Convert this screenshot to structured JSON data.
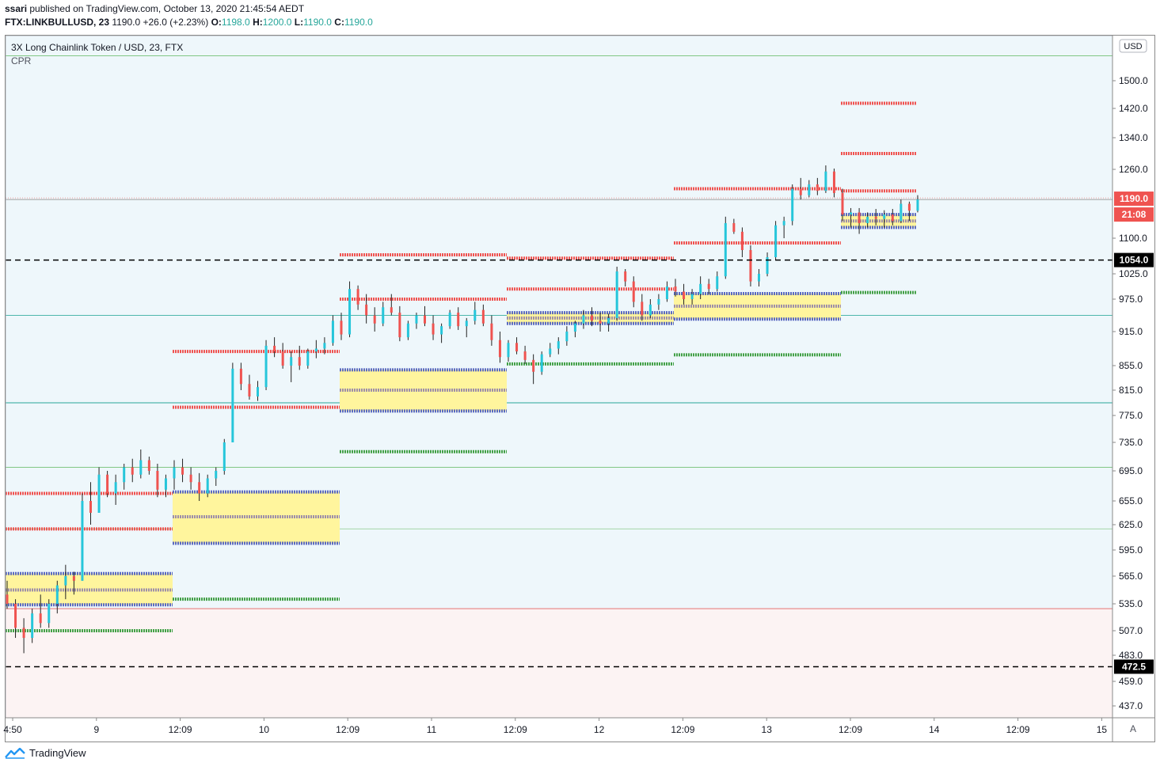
{
  "header": {
    "publisher": "ssari",
    "published_text": "published on TradingView.com, October 13, 2020 21:45:54 AEDT",
    "symbol": "FTX:LINKBULLUSD, 23",
    "last": "1190.0",
    "change": "+26.0 (+2.23%)",
    "o_label": "O:",
    "o": "1198.0",
    "h_label": "H:",
    "h": "1200.0",
    "l_label": "L:",
    "l": "1190.0",
    "c_label": "C:",
    "c": "1190.0"
  },
  "legend": {
    "title": "3X Long Chainlink Token / USD, 23, FTX",
    "indicator": "CPR"
  },
  "footer": {
    "brand": "TradingView"
  },
  "colors": {
    "up": "#26c6da",
    "down": "#ef5350",
    "red_level": "#ef5350",
    "green_level": "#43a047",
    "pivot": "#9e8fa8",
    "tc_bc": "#5c6bc0",
    "band": "#fff59d",
    "bg_top": "#eef7fb",
    "bg_bottom": "#fcf3f3"
  },
  "chart_data": {
    "type": "candlestick",
    "currency": "USD",
    "y_ticks": [
      "1500.0",
      "1420.0",
      "1340.0",
      "1260.0",
      "1100.0",
      "1025.0",
      "975.0",
      "915.0",
      "855.0",
      "815.0",
      "775.0",
      "735.0",
      "695.0",
      "655.0",
      "625.0",
      "595.0",
      "565.0",
      "535.0",
      "507.0",
      "483.0",
      "459.0",
      "437.0"
    ],
    "x_ticks": [
      {
        "label": "4:50",
        "i": 0
      },
      {
        "label": "9",
        "i": 1
      },
      {
        "label": "12:09",
        "i": 2
      },
      {
        "label": "10",
        "i": 3
      },
      {
        "label": "12:09",
        "i": 4
      },
      {
        "label": "11",
        "i": 5
      },
      {
        "label": "12:09",
        "i": 6
      },
      {
        "label": "12",
        "i": 7
      },
      {
        "label": "12:09",
        "i": 8
      },
      {
        "label": "13",
        "i": 9
      },
      {
        "label": "12:09",
        "i": 10
      },
      {
        "label": "14",
        "i": 11
      },
      {
        "label": "12:09",
        "i": 12
      },
      {
        "label": "15",
        "i": 13
      }
    ],
    "price_label": "1190.0",
    "countdown_label": "21:08",
    "dashed_levels": [
      {
        "value": 1054.0,
        "label": "1054.0"
      },
      {
        "value": 472.5,
        "label": "472.5"
      }
    ],
    "horizontal_lines": [
      {
        "value": 1575,
        "color": "#81c784"
      },
      {
        "value": 1190,
        "color": "#9e9e9e"
      },
      {
        "value": 945,
        "color": "#4db6ac"
      },
      {
        "value": 795,
        "color": "#26a69a"
      },
      {
        "value": 700,
        "color": "#81c784"
      },
      {
        "value": 620,
        "color": "#a5d6a7"
      },
      {
        "value": 530,
        "color": "#e57373"
      }
    ],
    "cpr_sessions": [
      {
        "start": 0.0,
        "end": 1.0,
        "r2": 665,
        "r1": 620,
        "tc": 568,
        "pivot": 550,
        "bc": 534,
        "s1": 507
      },
      {
        "start": 1.0,
        "end": 2.0,
        "r2": 788,
        "r1": 880,
        "tc": 667,
        "pivot": 635,
        "bc": 603,
        "s1": 540
      },
      {
        "start": 2.0,
        "end": 3.0,
        "r2": 1065,
        "r1": 975,
        "tc": 848,
        "pivot": 815,
        "bc": 782,
        "s1": 722
      },
      {
        "start": 3.0,
        "end": 4.0,
        "r2": 1058,
        "r1": 995,
        "tc": 950,
        "pivot": 940,
        "bc": 930,
        "s1": 858
      },
      {
        "start": 4.0,
        "end": 5.0,
        "r2": 1215,
        "r1": 1090,
        "tc": 986,
        "pivot": 962,
        "bc": 938,
        "s1": 874
      },
      {
        "start": 5.0,
        "end": 5.45,
        "r2": 1435,
        "r1": 1300,
        "r0": 1210,
        "tc": 1155,
        "pivot": 1140,
        "bc": 1125,
        "s1": 988
      }
    ],
    "candles_summary": [
      {
        "i": 0.0,
        "o": 545,
        "h": 560,
        "l": 530,
        "c": 535
      },
      {
        "i": 0.05,
        "o": 535,
        "h": 540,
        "l": 500,
        "c": 510
      },
      {
        "i": 0.1,
        "o": 510,
        "h": 520,
        "l": 485,
        "c": 500
      },
      {
        "i": 0.15,
        "o": 500,
        "h": 530,
        "l": 495,
        "c": 525
      },
      {
        "i": 0.2,
        "o": 525,
        "h": 545,
        "l": 510,
        "c": 515
      },
      {
        "i": 0.25,
        "o": 515,
        "h": 540,
        "l": 510,
        "c": 535
      },
      {
        "i": 0.3,
        "o": 535,
        "h": 560,
        "l": 525,
        "c": 555
      },
      {
        "i": 0.35,
        "o": 555,
        "h": 578,
        "l": 540,
        "c": 565
      },
      {
        "i": 0.4,
        "o": 565,
        "h": 570,
        "l": 545,
        "c": 560
      },
      {
        "i": 0.45,
        "o": 560,
        "h": 665,
        "l": 560,
        "c": 655
      },
      {
        "i": 0.5,
        "o": 655,
        "h": 680,
        "l": 625,
        "c": 640
      },
      {
        "i": 0.55,
        "o": 640,
        "h": 700,
        "l": 640,
        "c": 690
      },
      {
        "i": 0.6,
        "o": 690,
        "h": 695,
        "l": 660,
        "c": 665
      },
      {
        "i": 0.65,
        "o": 665,
        "h": 690,
        "l": 650,
        "c": 680
      },
      {
        "i": 0.7,
        "o": 680,
        "h": 705,
        "l": 670,
        "c": 700
      },
      {
        "i": 0.75,
        "o": 700,
        "h": 712,
        "l": 680,
        "c": 690
      },
      {
        "i": 0.8,
        "o": 690,
        "h": 725,
        "l": 685,
        "c": 710
      },
      {
        "i": 0.85,
        "o": 710,
        "h": 715,
        "l": 690,
        "c": 695
      },
      {
        "i": 0.9,
        "o": 695,
        "h": 705,
        "l": 660,
        "c": 670
      },
      {
        "i": 0.95,
        "o": 670,
        "h": 690,
        "l": 660,
        "c": 685
      },
      {
        "i": 1.0,
        "o": 685,
        "h": 710,
        "l": 670,
        "c": 700
      },
      {
        "i": 1.05,
        "o": 700,
        "h": 712,
        "l": 680,
        "c": 690
      },
      {
        "i": 1.1,
        "o": 690,
        "h": 700,
        "l": 670,
        "c": 680
      },
      {
        "i": 1.15,
        "o": 680,
        "h": 692,
        "l": 655,
        "c": 665
      },
      {
        "i": 1.2,
        "o": 665,
        "h": 690,
        "l": 660,
        "c": 685
      },
      {
        "i": 1.25,
        "o": 685,
        "h": 700,
        "l": 675,
        "c": 695
      },
      {
        "i": 1.3,
        "o": 695,
        "h": 740,
        "l": 690,
        "c": 735
      },
      {
        "i": 1.35,
        "o": 735,
        "h": 860,
        "l": 735,
        "c": 850
      },
      {
        "i": 1.4,
        "o": 850,
        "h": 860,
        "l": 815,
        "c": 825
      },
      {
        "i": 1.45,
        "o": 825,
        "h": 840,
        "l": 800,
        "c": 805
      },
      {
        "i": 1.5,
        "o": 805,
        "h": 830,
        "l": 798,
        "c": 820
      },
      {
        "i": 1.55,
        "o": 820,
        "h": 900,
        "l": 815,
        "c": 890
      },
      {
        "i": 1.6,
        "o": 890,
        "h": 905,
        "l": 870,
        "c": 880
      },
      {
        "i": 1.65,
        "o": 880,
        "h": 895,
        "l": 850,
        "c": 855
      },
      {
        "i": 1.7,
        "o": 855,
        "h": 880,
        "l": 828,
        "c": 870
      },
      {
        "i": 1.75,
        "o": 870,
        "h": 890,
        "l": 848,
        "c": 855
      },
      {
        "i": 1.8,
        "o": 855,
        "h": 885,
        "l": 850,
        "c": 880
      },
      {
        "i": 1.85,
        "o": 880,
        "h": 900,
        "l": 868,
        "c": 885
      },
      {
        "i": 1.9,
        "o": 885,
        "h": 905,
        "l": 875,
        "c": 895
      },
      {
        "i": 1.95,
        "o": 895,
        "h": 945,
        "l": 890,
        "c": 935
      },
      {
        "i": 2.0,
        "o": 935,
        "h": 950,
        "l": 900,
        "c": 910
      },
      {
        "i": 2.05,
        "o": 910,
        "h": 1010,
        "l": 905,
        "c": 995
      },
      {
        "i": 2.1,
        "o": 995,
        "h": 1002,
        "l": 955,
        "c": 965
      },
      {
        "i": 2.15,
        "o": 965,
        "h": 985,
        "l": 930,
        "c": 945
      },
      {
        "i": 2.2,
        "o": 945,
        "h": 960,
        "l": 915,
        "c": 930
      },
      {
        "i": 2.25,
        "o": 930,
        "h": 970,
        "l": 925,
        "c": 960
      },
      {
        "i": 2.3,
        "o": 960,
        "h": 985,
        "l": 945,
        "c": 950
      },
      {
        "i": 2.35,
        "o": 950,
        "h": 962,
        "l": 898,
        "c": 905
      },
      {
        "i": 2.4,
        "o": 905,
        "h": 935,
        "l": 900,
        "c": 930
      },
      {
        "i": 2.45,
        "o": 930,
        "h": 950,
        "l": 920,
        "c": 945
      },
      {
        "i": 2.5,
        "o": 945,
        "h": 962,
        "l": 925,
        "c": 930
      },
      {
        "i": 2.55,
        "o": 930,
        "h": 945,
        "l": 900,
        "c": 910
      },
      {
        "i": 2.6,
        "o": 910,
        "h": 930,
        "l": 895,
        "c": 925
      },
      {
        "i": 2.65,
        "o": 925,
        "h": 955,
        "l": 920,
        "c": 950
      },
      {
        "i": 2.7,
        "o": 950,
        "h": 960,
        "l": 918,
        "c": 925
      },
      {
        "i": 2.75,
        "o": 925,
        "h": 940,
        "l": 905,
        "c": 935
      },
      {
        "i": 2.8,
        "o": 935,
        "h": 970,
        "l": 928,
        "c": 955
      },
      {
        "i": 2.85,
        "o": 955,
        "h": 965,
        "l": 925,
        "c": 930
      },
      {
        "i": 2.9,
        "o": 930,
        "h": 945,
        "l": 890,
        "c": 900
      },
      {
        "i": 2.95,
        "o": 900,
        "h": 915,
        "l": 860,
        "c": 870
      },
      {
        "i": 3.0,
        "o": 870,
        "h": 900,
        "l": 862,
        "c": 895
      },
      {
        "i": 3.05,
        "o": 895,
        "h": 905,
        "l": 875,
        "c": 880
      },
      {
        "i": 3.1,
        "o": 880,
        "h": 890,
        "l": 858,
        "c": 865
      },
      {
        "i": 3.15,
        "o": 865,
        "h": 875,
        "l": 825,
        "c": 845
      },
      {
        "i": 3.2,
        "o": 845,
        "h": 880,
        "l": 840,
        "c": 875
      },
      {
        "i": 3.25,
        "o": 875,
        "h": 895,
        "l": 870,
        "c": 885
      },
      {
        "i": 3.3,
        "o": 885,
        "h": 905,
        "l": 875,
        "c": 898
      },
      {
        "i": 3.35,
        "o": 898,
        "h": 925,
        "l": 890,
        "c": 915
      },
      {
        "i": 3.4,
        "o": 915,
        "h": 935,
        "l": 905,
        "c": 930
      },
      {
        "i": 3.45,
        "o": 930,
        "h": 955,
        "l": 920,
        "c": 945
      },
      {
        "i": 3.5,
        "o": 945,
        "h": 960,
        "l": 925,
        "c": 935
      },
      {
        "i": 3.55,
        "o": 935,
        "h": 950,
        "l": 915,
        "c": 930
      },
      {
        "i": 3.6,
        "o": 930,
        "h": 948,
        "l": 915,
        "c": 940
      },
      {
        "i": 3.65,
        "o": 940,
        "h": 1040,
        "l": 935,
        "c": 1030
      },
      {
        "i": 3.7,
        "o": 1030,
        "h": 1035,
        "l": 1000,
        "c": 1010
      },
      {
        "i": 3.75,
        "o": 1010,
        "h": 1020,
        "l": 960,
        "c": 970
      },
      {
        "i": 3.8,
        "o": 970,
        "h": 985,
        "l": 935,
        "c": 945
      },
      {
        "i": 3.85,
        "o": 945,
        "h": 975,
        "l": 940,
        "c": 965
      },
      {
        "i": 3.9,
        "o": 965,
        "h": 985,
        "l": 955,
        "c": 975
      },
      {
        "i": 3.95,
        "o": 975,
        "h": 1010,
        "l": 970,
        "c": 1000
      },
      {
        "i": 4.0,
        "o": 1000,
        "h": 1015,
        "l": 980,
        "c": 990
      },
      {
        "i": 4.05,
        "o": 990,
        "h": 1005,
        "l": 965,
        "c": 975
      },
      {
        "i": 4.1,
        "o": 975,
        "h": 995,
        "l": 965,
        "c": 985
      },
      {
        "i": 4.15,
        "o": 985,
        "h": 1020,
        "l": 975,
        "c": 1005
      },
      {
        "i": 4.2,
        "o": 1005,
        "h": 1015,
        "l": 985,
        "c": 995
      },
      {
        "i": 4.25,
        "o": 995,
        "h": 1030,
        "l": 990,
        "c": 1020
      },
      {
        "i": 4.3,
        "o": 1020,
        "h": 1150,
        "l": 1015,
        "c": 1135
      },
      {
        "i": 4.35,
        "o": 1135,
        "h": 1145,
        "l": 1110,
        "c": 1115
      },
      {
        "i": 4.4,
        "o": 1115,
        "h": 1125,
        "l": 1060,
        "c": 1075
      },
      {
        "i": 4.45,
        "o": 1075,
        "h": 1085,
        "l": 1000,
        "c": 1010
      },
      {
        "i": 4.5,
        "o": 1010,
        "h": 1035,
        "l": 1000,
        "c": 1025
      },
      {
        "i": 4.55,
        "o": 1025,
        "h": 1070,
        "l": 1020,
        "c": 1060
      },
      {
        "i": 4.6,
        "o": 1060,
        "h": 1140,
        "l": 1055,
        "c": 1130
      },
      {
        "i": 4.65,
        "o": 1130,
        "h": 1150,
        "l": 1100,
        "c": 1140
      },
      {
        "i": 4.7,
        "o": 1140,
        "h": 1225,
        "l": 1130,
        "c": 1215
      },
      {
        "i": 4.75,
        "o": 1215,
        "h": 1240,
        "l": 1190,
        "c": 1200
      },
      {
        "i": 4.8,
        "o": 1200,
        "h": 1235,
        "l": 1195,
        "c": 1225
      },
      {
        "i": 4.85,
        "o": 1225,
        "h": 1240,
        "l": 1200,
        "c": 1210
      },
      {
        "i": 4.9,
        "o": 1210,
        "h": 1270,
        "l": 1205,
        "c": 1255
      },
      {
        "i": 4.95,
        "o": 1255,
        "h": 1262,
        "l": 1195,
        "c": 1205
      },
      {
        "i": 5.0,
        "o": 1205,
        "h": 1215,
        "l": 1140,
        "c": 1155
      },
      {
        "i": 5.05,
        "o": 1155,
        "h": 1170,
        "l": 1125,
        "c": 1160
      },
      {
        "i": 5.1,
        "o": 1160,
        "h": 1170,
        "l": 1110,
        "c": 1135
      },
      {
        "i": 5.15,
        "o": 1135,
        "h": 1160,
        "l": 1125,
        "c": 1150
      },
      {
        "i": 5.2,
        "o": 1150,
        "h": 1168,
        "l": 1130,
        "c": 1145
      },
      {
        "i": 5.25,
        "o": 1145,
        "h": 1165,
        "l": 1125,
        "c": 1155
      },
      {
        "i": 5.3,
        "o": 1155,
        "h": 1168,
        "l": 1130,
        "c": 1140
      },
      {
        "i": 5.35,
        "o": 1140,
        "h": 1190,
        "l": 1135,
        "c": 1180
      },
      {
        "i": 5.4,
        "o": 1180,
        "h": 1185,
        "l": 1140,
        "c": 1164
      },
      {
        "i": 5.45,
        "o": 1164,
        "h": 1200,
        "l": 1160,
        "c": 1190
      }
    ]
  }
}
